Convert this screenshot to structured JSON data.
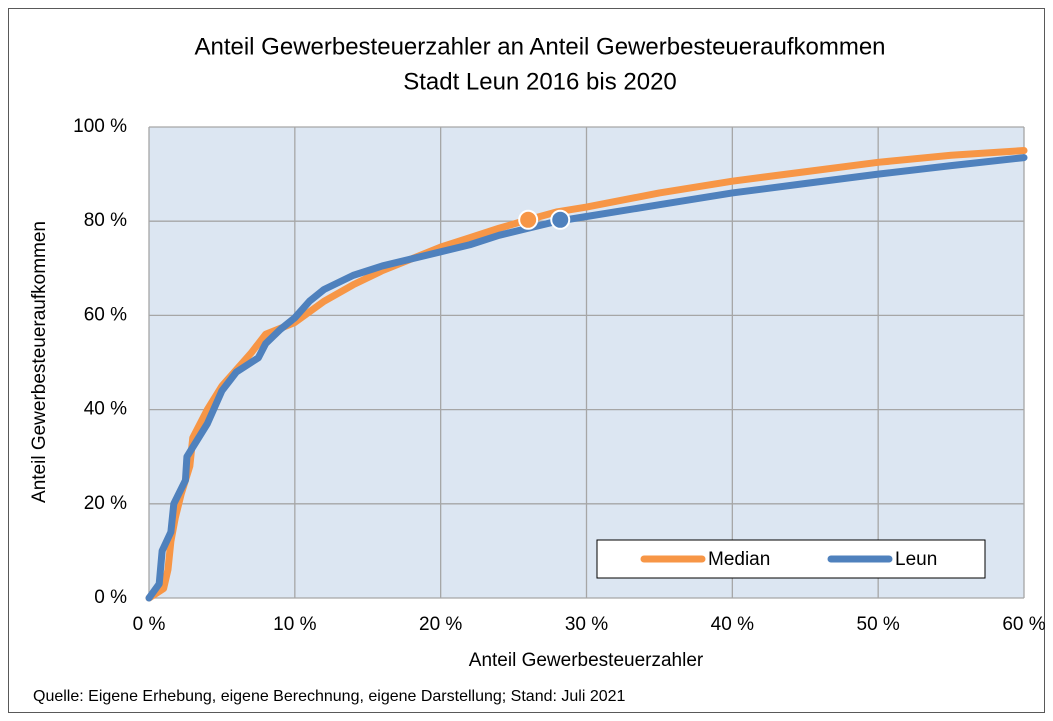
{
  "chart_data": {
    "type": "line",
    "title": "Anteil Gewerbesteuerzahler an Anteil Gewerbesteueraufkommen",
    "subtitle": "Stadt Leun 2016 bis 2020",
    "xlabel": "Anteil Gewerbesteuerzahler",
    "ylabel": "Anteil Gewerbesteueraufkommen",
    "source": "Quelle: Eigene Erhebung, eigene Berechnung, eigene Darstellung; Stand: Juli 2021",
    "xlim": [
      0,
      60
    ],
    "ylim": [
      0,
      100
    ],
    "xticks": [
      {
        "value": 0,
        "label": "0 %"
      },
      {
        "value": 10,
        "label": "10 %"
      },
      {
        "value": 20,
        "label": "20 %"
      },
      {
        "value": 30,
        "label": "30 %"
      },
      {
        "value": 40,
        "label": "40 %"
      },
      {
        "value": 50,
        "label": "50 %"
      },
      {
        "value": 60,
        "label": "60 %"
      }
    ],
    "yticks": [
      {
        "value": 0,
        "label": "0 %"
      },
      {
        "value": 20,
        "label": "20 %"
      },
      {
        "value": 40,
        "label": "40 %"
      },
      {
        "value": 60,
        "label": "60 %"
      },
      {
        "value": 80,
        "label": "80 %"
      },
      {
        "value": 100,
        "label": "100 %"
      }
    ],
    "grid": true,
    "legend": "bottom-right",
    "series": [
      {
        "name": "Median",
        "color": "#f79646",
        "x": [
          0,
          1,
          1.3,
          1.5,
          1.8,
          2.2,
          2.8,
          3,
          4,
          5,
          6,
          7,
          8,
          10,
          12,
          14,
          16,
          18,
          20,
          22,
          24,
          26,
          28,
          30,
          35,
          40,
          45,
          50,
          55,
          60
        ],
        "values": [
          0,
          2,
          6,
          12,
          17,
          22,
          28,
          34,
          40,
          45,
          48.5,
          52,
          56,
          58.5,
          63,
          66.5,
          69.5,
          72,
          74.5,
          76.5,
          78.5,
          80.3,
          82,
          83,
          86,
          88.5,
          90.5,
          92.5,
          94,
          95
        ],
        "marker": {
          "x": 26,
          "y": 80.3
        }
      },
      {
        "name": "Leun",
        "color": "#4f81bd",
        "x": [
          0,
          0.7,
          0.9,
          1.5,
          1.7,
          2.5,
          2.6,
          3,
          4,
          5,
          6,
          7.5,
          8,
          9,
          10,
          11,
          12,
          14,
          16,
          18,
          20,
          22,
          24,
          26,
          28,
          30,
          35,
          40,
          45,
          50,
          55,
          60
        ],
        "values": [
          0,
          3,
          10,
          14,
          20,
          25,
          30,
          32,
          37,
          44,
          48,
          51,
          54,
          57,
          59.5,
          63,
          65.5,
          68.5,
          70.5,
          72,
          73.5,
          75,
          77,
          78.5,
          80,
          81,
          83.5,
          86,
          88,
          90,
          91.8,
          93.5
        ],
        "marker": {
          "x": 28.2,
          "y": 80.3
        }
      }
    ]
  }
}
